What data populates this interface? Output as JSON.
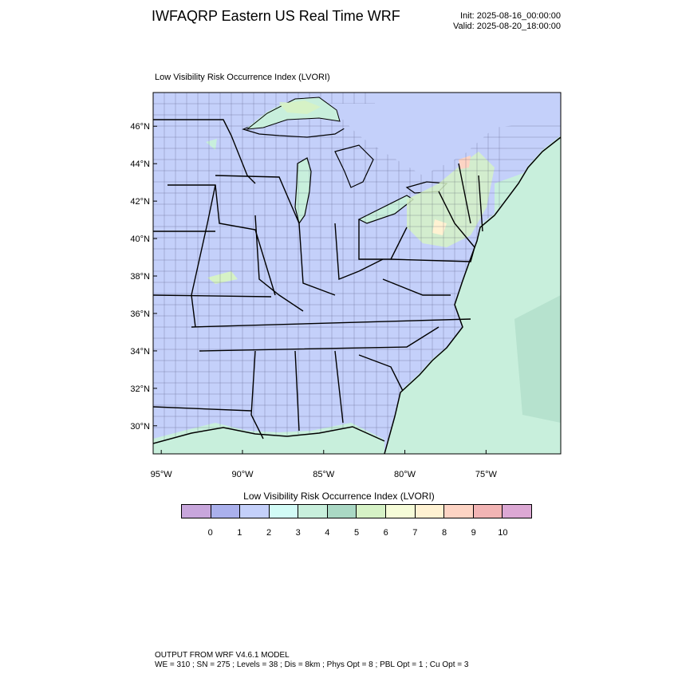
{
  "header": {
    "title": "IWFAQRP Eastern US Real Time WRF",
    "init": "Init: 2025-08-16_00:00:00",
    "valid": "Valid: 2025-08-20_18:00:00"
  },
  "plot": {
    "title": "Low Visibility Risk Occurrence Index   (LVORI)",
    "lat_labels": [
      "46°N",
      "44°N",
      "42°N",
      "40°N",
      "38°N",
      "36°N",
      "34°N",
      "32°N",
      "30°N"
    ],
    "lon_labels": [
      "95°W",
      "90°W",
      "85°W",
      "80°W",
      "75°W"
    ],
    "lat_range": [
      28.5,
      47.8
    ],
    "lon_range": [
      -95.5,
      -70.4
    ]
  },
  "colorbar": {
    "title": "Low Visibility Risk Occurrence Index  (LVORI)",
    "ticks": [
      "0",
      "1",
      "2",
      "3",
      "4",
      "5",
      "6",
      "7",
      "8",
      "9",
      "10"
    ],
    "colors": [
      "#c8a6dc",
      "#aab0ec",
      "#c4d0fa",
      "#d2fbf6",
      "#c8efdc",
      "#aad8c4",
      "#d6f2c6",
      "#f6fcd8",
      "#fff2d2",
      "#fdd4c4",
      "#f2b4b4",
      "#dca8d4"
    ]
  },
  "footer": {
    "line1": "OUTPUT FROM WRF V4.6.1 MODEL",
    "line2": "WE = 310 ; SN = 275 ; Levels = 38 ; Dis = 8km ; Phys Opt = 8 ; PBL Opt = 1 ; Cu Opt = 3"
  },
  "colors": {
    "land_low": "#c4d0fa",
    "ocean": "#c8efdc",
    "lake": "#c4d0fa",
    "mid": "#d6f2c6",
    "high": "#f6fcd8"
  }
}
